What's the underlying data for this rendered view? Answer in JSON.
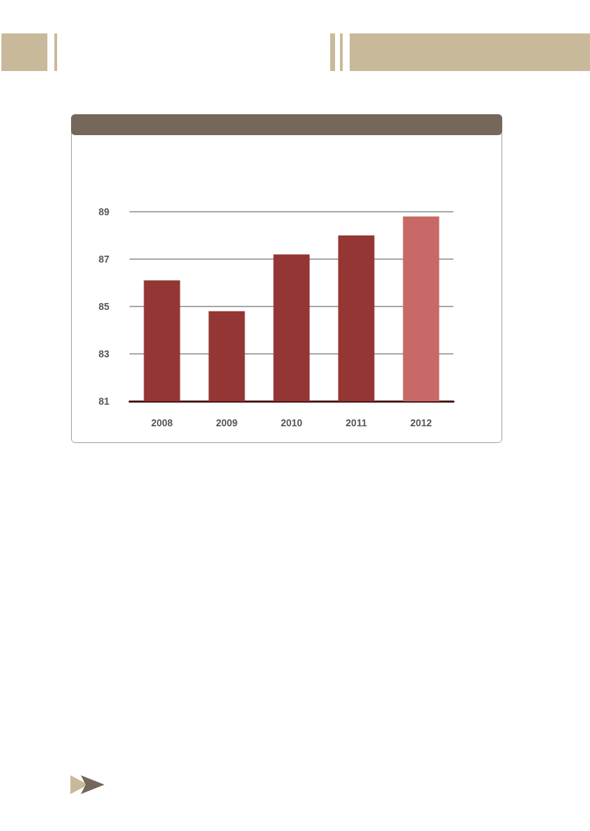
{
  "chart_data": {
    "type": "bar",
    "categories": [
      "2008",
      "2009",
      "2010",
      "2011",
      "2012"
    ],
    "values": [
      86.1,
      84.8,
      87.2,
      88.0,
      88.8
    ],
    "colors": [
      "#943634",
      "#943634",
      "#943634",
      "#943634",
      "#c96967"
    ],
    "ylim": [
      81,
      89
    ],
    "yticks": [
      81,
      83,
      85,
      87,
      89
    ],
    "grid": "y"
  }
}
